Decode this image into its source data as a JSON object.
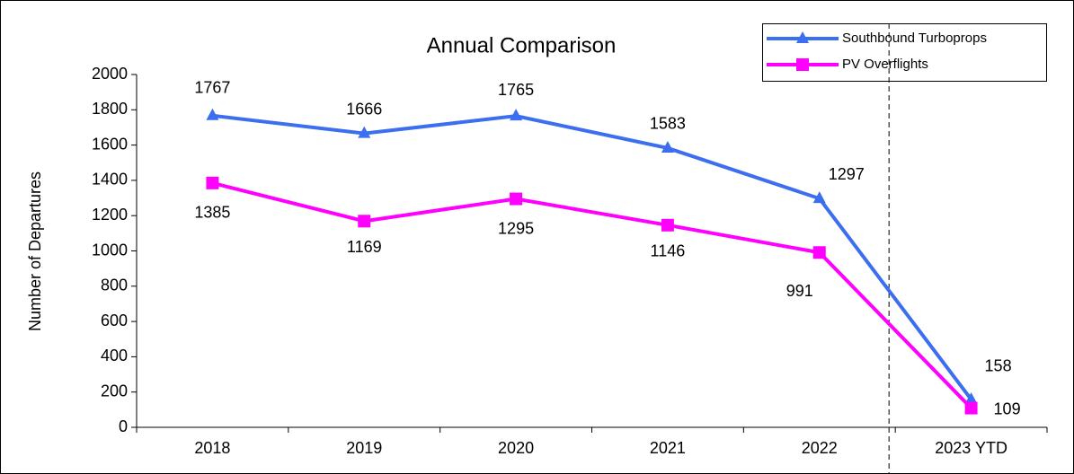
{
  "chart_data": {
    "type": "line",
    "title": "Annual Comparison",
    "y_label": "Number of Departures",
    "categories": [
      "2018",
      "2019",
      "2020",
      "2021",
      "2022",
      "2023 YTD"
    ],
    "series": [
      {
        "name": "Southbound Turboprops",
        "color": "#3c6ef0",
        "marker": "triangle",
        "values": [
          1767,
          1666,
          1765,
          1583,
          1297,
          158
        ]
      },
      {
        "name": "PV Overflights",
        "color": "#ff00ff",
        "marker": "square",
        "values": [
          1385,
          1169,
          1295,
          1146,
          991,
          109
        ]
      }
    ],
    "ylim": [
      0,
      2000
    ],
    "yticks": [
      0,
      200,
      400,
      600,
      800,
      1000,
      1200,
      1400,
      1600,
      1800,
      2000
    ],
    "grid": false,
    "legend": "top-right"
  }
}
